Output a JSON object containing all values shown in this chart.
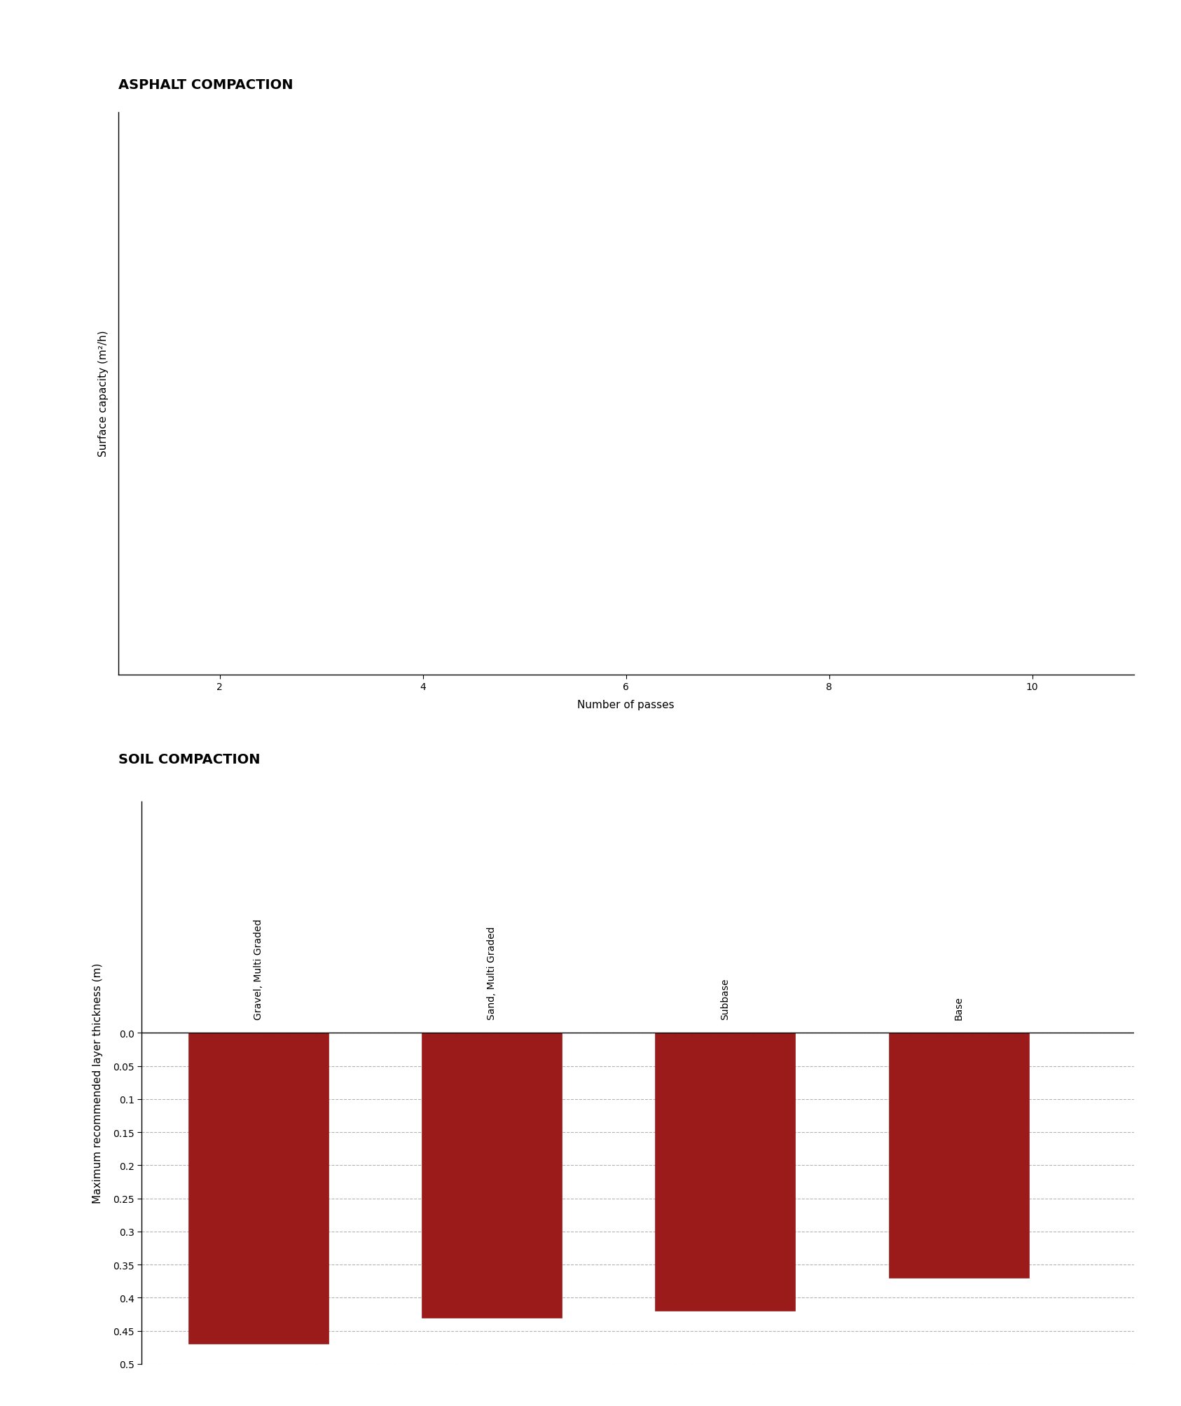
{
  "asphalt_title": "ASPHALT COMPACTION",
  "asphalt_xlabel": "Number of passes",
  "asphalt_ylabel": "Surface capacity (m²/h)",
  "asphalt_xlim": [
    1,
    11
  ],
  "asphalt_xticks": [
    2,
    4,
    6,
    8,
    10
  ],
  "soil_title": "SOIL COMPACTION",
  "soil_ylabel": "Maximum recommended layer thickness (m)",
  "soil_categories": [
    "Gravel, Multi Graded",
    "Sand, Multi Graded",
    "Subbase",
    "Base"
  ],
  "soil_values": [
    0.47,
    0.43,
    0.42,
    0.37
  ],
  "soil_ylim": [
    0.5,
    0.0
  ],
  "soil_yticks": [
    0.0,
    0.05,
    0.1,
    0.15,
    0.2,
    0.25,
    0.3,
    0.35,
    0.4,
    0.45,
    0.5
  ],
  "bar_color": "#9B1B1B",
  "bar_edge_color": "#9B1B1B",
  "background_color": "#ffffff",
  "title_fontsize": 14,
  "axis_label_fontsize": 11,
  "tick_fontsize": 10,
  "category_label_fontsize": 10
}
